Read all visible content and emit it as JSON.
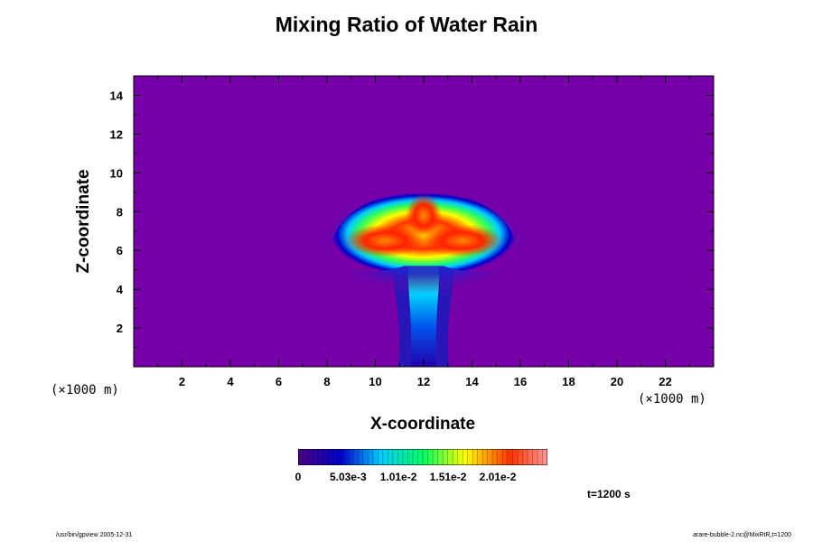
{
  "chart_data": {
    "type": "heatmap",
    "title": "Mixing Ratio of Water Rain",
    "xlabel": "X-coordinate",
    "ylabel": "Z-coordinate",
    "x_unit": "(×1000 m)",
    "y_unit": "(×1000 m)",
    "xlim": [
      0,
      24
    ],
    "ylim": [
      0,
      15
    ],
    "x_ticks": [
      "2",
      "4",
      "6",
      "8",
      "10",
      "12",
      "14",
      "16",
      "18",
      "20",
      "22"
    ],
    "y_ticks": [
      "2",
      "4",
      "6",
      "8",
      "10",
      "12",
      "14"
    ],
    "colorbar": {
      "min": 0,
      "max": 0.0251,
      "tick_labels": [
        "0",
        "5.03e-3",
        "1.01e-2",
        "1.51e-2",
        "2.01e-2"
      ],
      "colors": [
        "#7a00a8",
        "#0000cc",
        "#00ccff",
        "#00ff66",
        "#ffff00",
        "#ff3300",
        "#ff9999"
      ]
    },
    "features": [
      {
        "name": "anvil",
        "center_x": 12,
        "center_z": 6.5,
        "peak": 0.022
      },
      {
        "name": "stem",
        "center_x": 12,
        "z_range": [
          0,
          5
        ],
        "peak": 0.009
      }
    ],
    "background_color": "#7700a8"
  },
  "time_label": "t=1200 s",
  "footer": {
    "left": "/usr/bin/gpview 2005-12-31",
    "right": "arare-bubble-2.nc@MixRtR,t=1200"
  }
}
